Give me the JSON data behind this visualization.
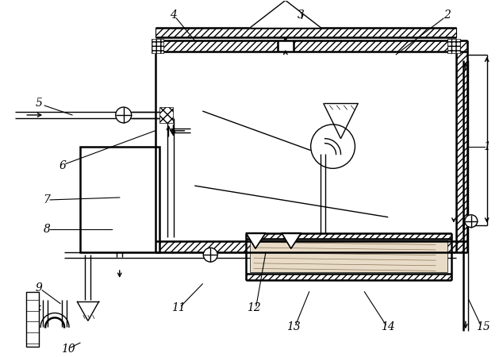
{
  "bg_color": "#ffffff",
  "lc": "#000000",
  "lw": 1.0,
  "lw2": 1.8,
  "fig_w": 6.34,
  "fig_h": 4.5,
  "xlim": [
    0,
    634
  ],
  "ylim": [
    0,
    450
  ]
}
